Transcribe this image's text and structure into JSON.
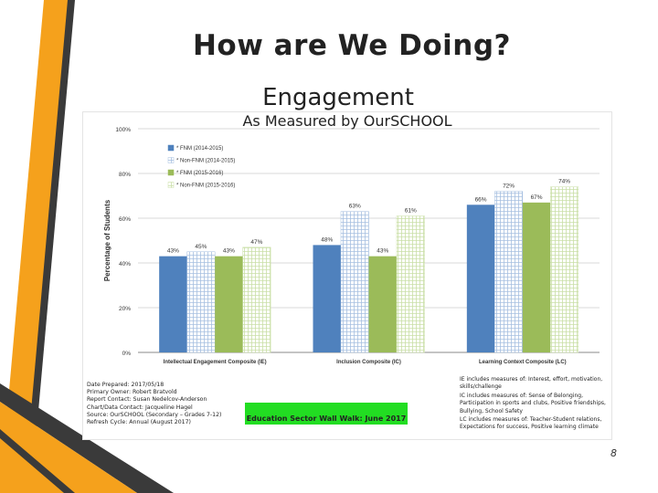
{
  "slide": {
    "title": "How are We Doing?",
    "subtitle": "Engagement",
    "measured_by": "As Measured by OurSCHOOL",
    "page_number": "8"
  },
  "chart_data": {
    "type": "bar",
    "title": "",
    "ylabel": "Percentage of Students",
    "xlabel": "",
    "ylim": [
      0,
      100
    ],
    "yticks": [
      "0%",
      "20%",
      "40%",
      "60%",
      "80%",
      "100%"
    ],
    "grid": true,
    "legend_position": "top-left",
    "categories": [
      "Intellectual Engagement Composite (IE)",
      "Inclusion Composite (IC)",
      "Learning Context Composite (LC)"
    ],
    "series": [
      {
        "name": "* FNM (2014-2015)",
        "values": [
          43,
          48,
          66
        ],
        "labels": [
          "43%",
          "48%",
          "66%"
        ],
        "color": "#4f81bd",
        "pattern": "solid"
      },
      {
        "name": "* Non-FNM (2014-2015)",
        "values": [
          45,
          63,
          72
        ],
        "labels": [
          "45%",
          "63%",
          "72%"
        ],
        "color": "#a6bfe0",
        "pattern": "grid"
      },
      {
        "name": "* FNM (2015-2016)",
        "values": [
          43,
          43,
          67
        ],
        "labels": [
          "43%",
          "43%",
          "67%"
        ],
        "color": "#9bbb59",
        "pattern": "solid"
      },
      {
        "name": "* Non-FNM (2015-2016)",
        "values": [
          47,
          61,
          74
        ],
        "labels": [
          "47%",
          "61%",
          "74%"
        ],
        "color": "#c9dfa6",
        "pattern": "grid"
      }
    ]
  },
  "footer": {
    "info_lines": [
      "Date Prepared: 2017/05/18",
      "Primary Owner: Robert Bratvold",
      "Report Contact: Susan Nedelcov-Anderson",
      "Chart/Data Contact: Jacqueline Hagel",
      "Source: OurSCHOOL (Secondary – Grades 7-12)",
      "Refresh Cycle: Annual (August 2017)"
    ],
    "banner": "Education Sector Wall Walk: June 2017",
    "notes": [
      "IE includes measures of: Interest, effort, motivation, skills/challenge",
      "IC includes measures of: Sense of Belonging, Participation in sports and clubs, Positive friendships, Bullying, School Safety",
      "LC includes measures of: Teacher-Student relations, Expectations for success, Positive learning climate"
    ]
  },
  "colors": {
    "accent_orange": "#f5a11c",
    "accent_dark": "#3a3a3a",
    "banner_green": "#22dd22"
  }
}
